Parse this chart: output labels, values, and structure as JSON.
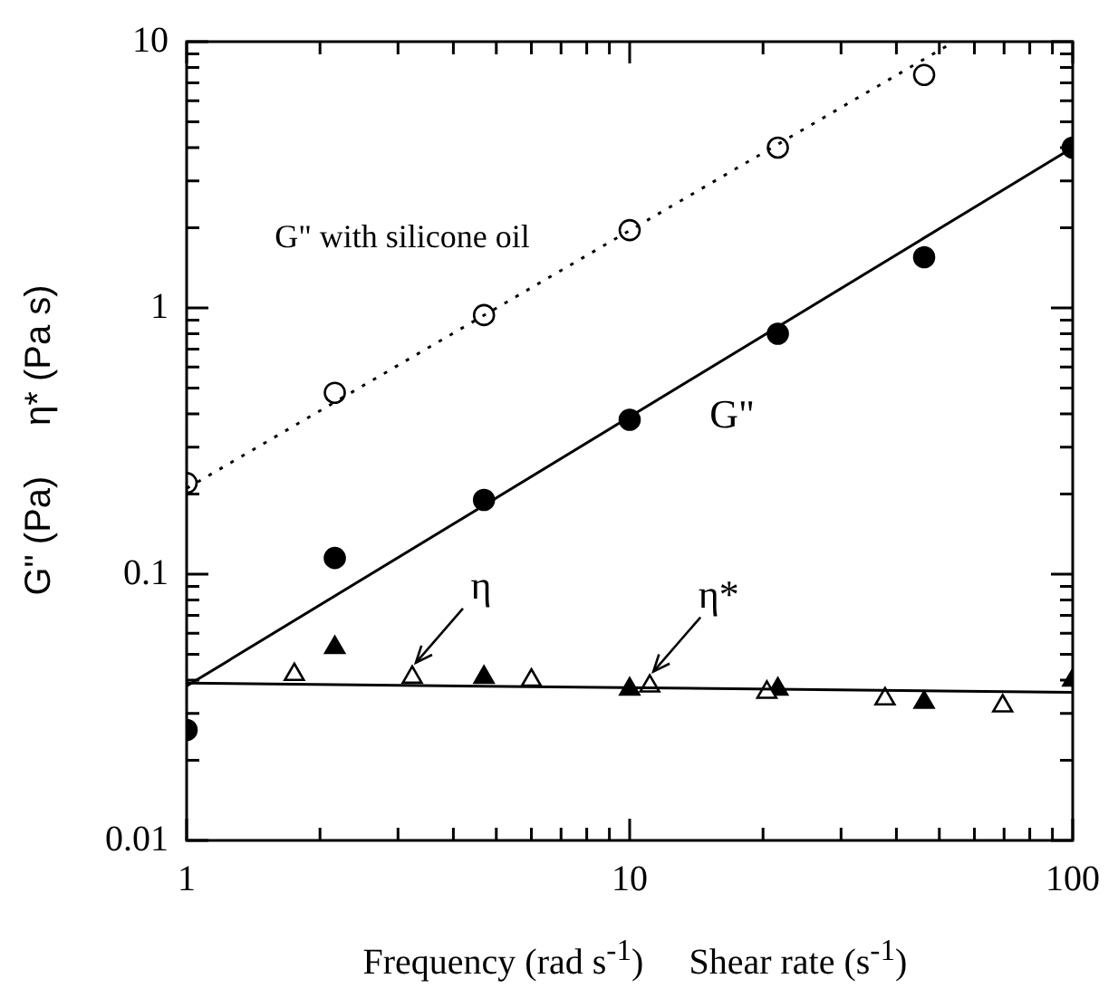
{
  "chart_data": {
    "type": "scatter",
    "xlabel": "Frequency (rad s$^{-1}$)     Shear rate (s$^{-1}$)",
    "ylabel": "G\" (Pa)     η* (Pa s)",
    "log": "xy",
    "xlim": [
      1,
      100
    ],
    "ylim": [
      0.01,
      10
    ],
    "xticks": [
      1,
      10,
      100
    ],
    "yticks": [
      0.01,
      0.1,
      1,
      10
    ],
    "grid": false,
    "legend": false,
    "series": [
      {
        "marker": "circle",
        "color": "#000000",
        "x": [
          1,
          2.16,
          4.69,
          10,
          21.6,
          46.2
        ],
        "values": [
          0.22,
          0.48,
          0.94,
          1.96,
          4.0,
          7.5
        ]
      },
      {
        "type": "line",
        "marker": "none",
        "line_style": "dotted",
        "color": "#000000",
        "x": [
          1,
          54
        ],
        "values": [
          0.21,
          10
        ]
      },
      {
        "marker": "circle",
        "color": "#000000",
        "x": [
          1,
          2.16,
          4.69,
          10,
          21.6,
          46.2,
          100
        ],
        "values": [
          0.026,
          0.115,
          0.19,
          0.38,
          0.8,
          1.55,
          4.0
        ]
      },
      {
        "type": "line",
        "marker": "none",
        "line_style": "solid",
        "color": "#000000",
        "x": [
          1,
          100
        ],
        "values": [
          0.038,
          4.0
        ]
      },
      {
        "marker": "triangle",
        "color": "#000000",
        "x": [
          2.16,
          4.69,
          10,
          21.6,
          46.2,
          100
        ],
        "values": [
          0.053,
          0.041,
          0.037,
          0.037,
          0.033,
          0.04
        ]
      },
      {
        "marker": "triangle",
        "color": "#000000",
        "x": [
          1.75,
          3.23,
          6.0,
          11.1,
          20.4,
          37.7,
          69.5
        ],
        "values": [
          0.042,
          0.041,
          0.04,
          0.038,
          0.036,
          0.034,
          0.032
        ]
      },
      {
        "type": "line",
        "marker": "none",
        "line_style": "solid",
        "color": "#000000",
        "x": [
          1,
          100
        ],
        "values": [
          0.039,
          0.036
        ]
      }
    ],
    "annotations": [
      "G\" with silicone oil",
      "G\"",
      {
        "text": "η",
        "x": 3.23,
        "y": 0.041
      },
      {
        "text": "η*",
        "x": 11.1,
        "y": 0.038
      }
    ]
  }
}
